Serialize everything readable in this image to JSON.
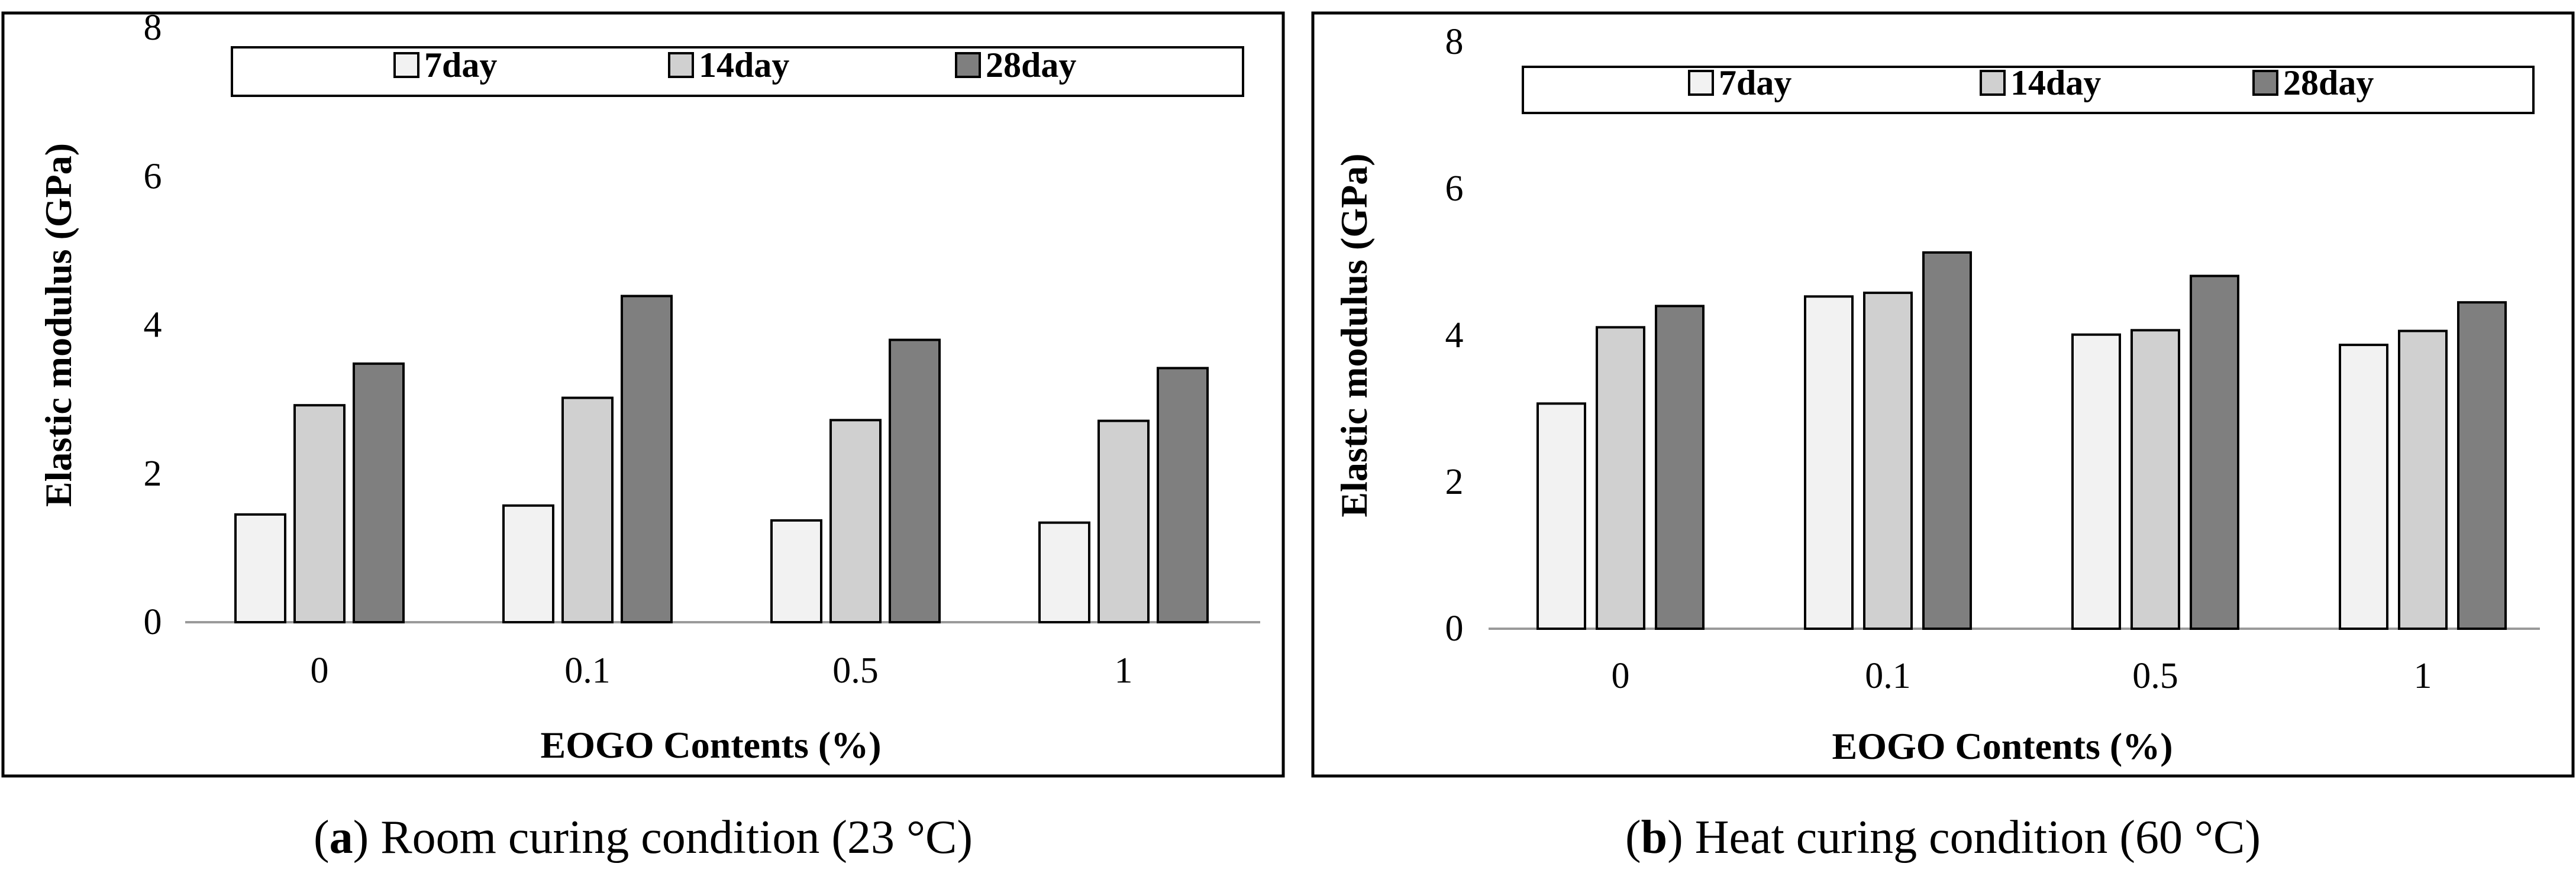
{
  "chart_data": [
    {
      "type": "bar",
      "title": "",
      "xlabel": "EOGO Contents (%)",
      "ylabel": "Elastic modulus (GPa)",
      "ylim": [
        0,
        8
      ],
      "yticks": [
        "0",
        "2",
        "4",
        "6",
        "8"
      ],
      "categories": [
        "0",
        "0.1",
        "0.5",
        "1"
      ],
      "legend_position": "top",
      "series": [
        {
          "name": "7day",
          "color": "#f2f2f2",
          "values": [
            1.45,
            1.57,
            1.37,
            1.34
          ]
        },
        {
          "name": "14day",
          "color": "#d0d0d0",
          "values": [
            2.92,
            3.02,
            2.72,
            2.71
          ]
        },
        {
          "name": "28day",
          "color": "#7f7f7f",
          "values": [
            3.48,
            4.39,
            3.8,
            3.42
          ]
        }
      ],
      "caption_letter": "a",
      "caption_text": ") Room curing condition (23 °C)"
    },
    {
      "type": "bar",
      "title": "",
      "xlabel": "EOGO Contents (%)",
      "ylabel": "Elastic modulus (GPa)",
      "ylim": [
        0,
        8
      ],
      "yticks": [
        "0",
        "2",
        "4",
        "6",
        "8"
      ],
      "categories": [
        "0",
        "0.1",
        "0.5",
        "1"
      ],
      "legend_position": "top",
      "series": [
        {
          "name": "7day",
          "color": "#f2f2f2",
          "values": [
            3.07,
            4.53,
            4.01,
            3.87
          ]
        },
        {
          "name": "14day",
          "color": "#d0d0d0",
          "values": [
            4.11,
            4.58,
            4.07,
            4.06
          ]
        },
        {
          "name": "28day",
          "color": "#7f7f7f",
          "values": [
            4.4,
            5.13,
            4.81,
            4.45
          ]
        }
      ],
      "caption_letter": "b",
      "caption_text": ") Heat curing condition (60 °C)"
    }
  ]
}
